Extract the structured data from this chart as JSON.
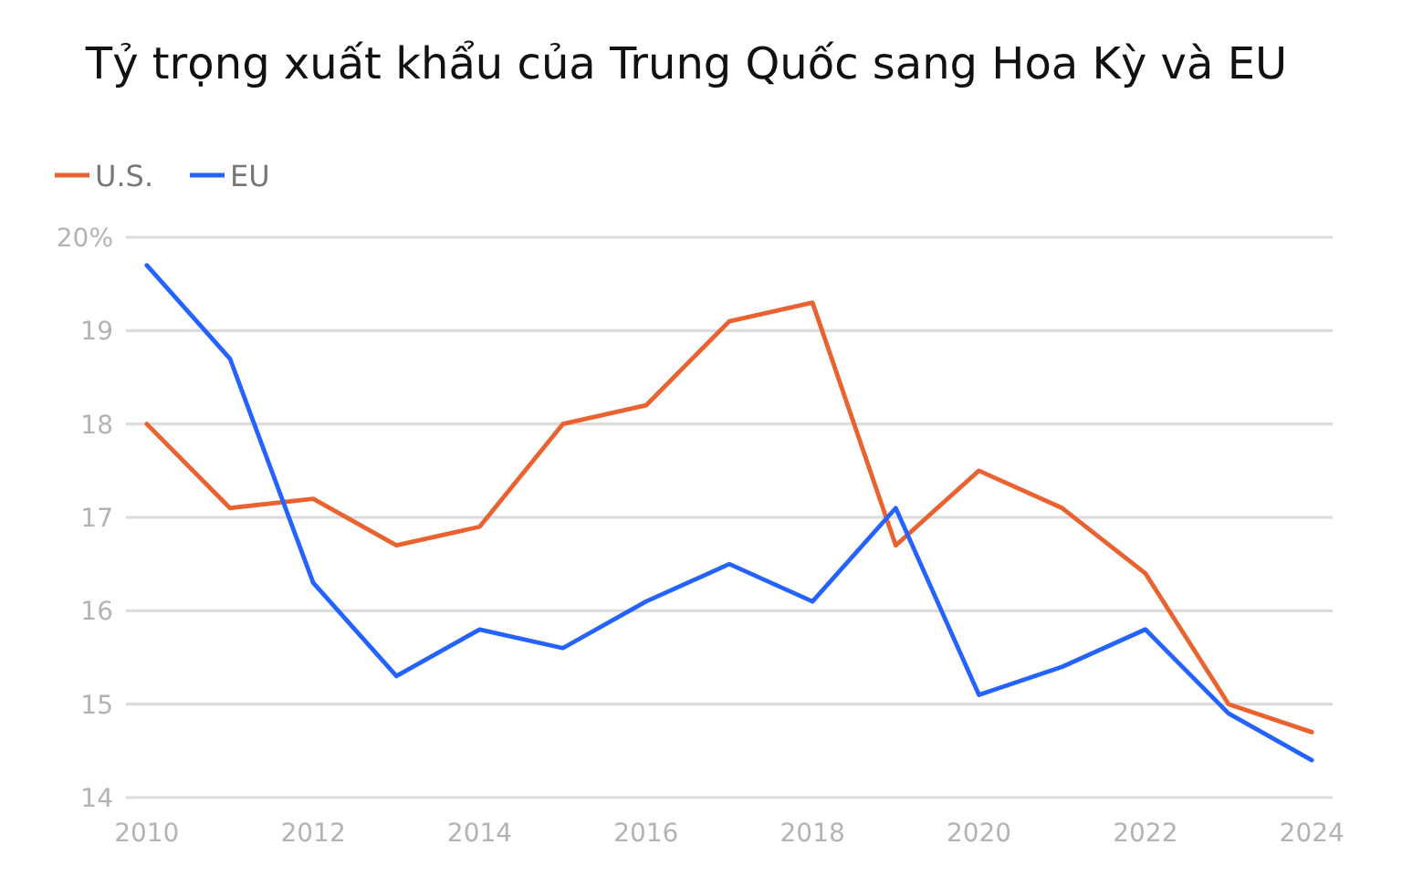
{
  "chart_data": {
    "type": "line",
    "title": "Tỷ trọng xuất khẩu của Trung Quốc sang Hoa Kỳ và EU",
    "x": [
      2010,
      2011,
      2012,
      2013,
      2014,
      2015,
      2016,
      2017,
      2018,
      2019,
      2020,
      2021,
      2022,
      2023,
      2024
    ],
    "series": [
      {
        "name": "U.S.",
        "color": "#e9622f",
        "values": [
          18.0,
          17.1,
          17.2,
          16.7,
          16.9,
          18.0,
          18.2,
          19.1,
          19.3,
          16.7,
          17.5,
          17.1,
          16.4,
          15.0,
          14.7
        ]
      },
      {
        "name": "EU",
        "color": "#2463ff",
        "values": [
          19.7,
          18.7,
          16.3,
          15.3,
          15.8,
          15.6,
          16.1,
          16.5,
          16.1,
          17.1,
          15.1,
          15.4,
          15.8,
          14.9,
          14.4
        ]
      }
    ],
    "xlim": [
      2009.75,
      2024.25
    ],
    "xticks": [
      2010,
      2012,
      2014,
      2016,
      2018,
      2020,
      2022,
      2024
    ],
    "ylim": [
      14,
      20
    ],
    "yticks": [
      14,
      15,
      16,
      17,
      18,
      19,
      {
        "value": 20,
        "label": "20%"
      }
    ],
    "grid": "y",
    "legend": "top left",
    "marker": "none",
    "line_style": "solid"
  }
}
